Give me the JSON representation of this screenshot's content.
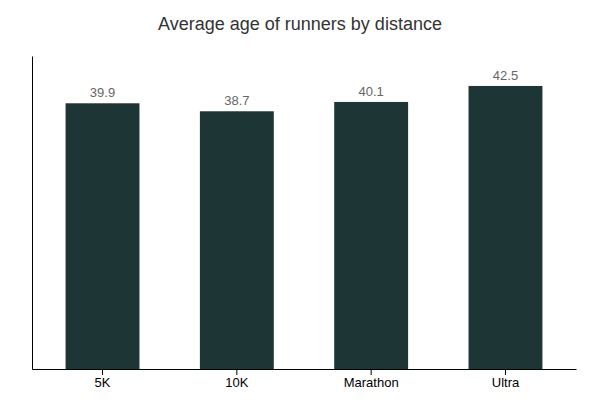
{
  "chart_data": {
    "type": "bar",
    "title": "Average age of runners by distance",
    "categories": [
      "5K",
      "10K",
      "Marathon",
      "Ultra"
    ],
    "values": [
      39.9,
      38.7,
      40.1,
      42.5
    ],
    "color": "#1d3535",
    "ylim": [
      0,
      47
    ],
    "data_labels": true,
    "tick_labels": "x",
    "grid": false
  }
}
